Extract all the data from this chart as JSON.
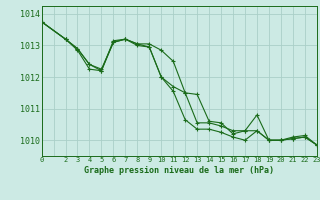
{
  "background_color": "#cceae4",
  "grid_color": "#aacfc8",
  "line_color": "#1a6b1a",
  "title": "Graphe pression niveau de la mer (hPa)",
  "xlim": [
    0,
    23
  ],
  "ylim": [
    1009.5,
    1014.25
  ],
  "yticks": [
    1010,
    1011,
    1012,
    1013,
    1014
  ],
  "xtick_labels": [
    "0",
    "",
    "2",
    "3",
    "4",
    "5",
    "6",
    "7",
    "8",
    "9",
    "10",
    "11",
    "12",
    "13",
    "14",
    "15",
    "16",
    "17",
    "18",
    "19",
    "20",
    "21",
    "22",
    "23"
  ],
  "series": [
    {
      "x": [
        0,
        2,
        3,
        4,
        5,
        6,
        7,
        8,
        9,
        10,
        11,
        12,
        13,
        14,
        15,
        16,
        17,
        18,
        19,
        20,
        21,
        22,
        23
      ],
      "y": [
        1013.75,
        1013.2,
        1012.9,
        1012.4,
        1012.2,
        1013.1,
        1013.2,
        1013.0,
        1012.95,
        1012.0,
        1011.55,
        1010.65,
        1010.35,
        1010.35,
        1010.25,
        1010.1,
        1010.0,
        1010.3,
        1010.0,
        1010.0,
        1010.1,
        1010.15,
        1009.85
      ]
    },
    {
      "x": [
        0,
        2,
        3,
        4,
        5,
        6,
        7,
        8,
        9,
        10,
        11,
        12,
        13,
        14,
        15,
        16,
        17,
        18,
        19,
        20,
        21,
        22,
        23
      ],
      "y": [
        1013.75,
        1013.2,
        1012.9,
        1012.4,
        1012.25,
        1013.1,
        1013.2,
        1013.05,
        1012.95,
        1012.0,
        1011.7,
        1011.5,
        1011.45,
        1010.6,
        1010.55,
        1010.2,
        1010.3,
        1010.8,
        1010.0,
        1010.0,
        1010.05,
        1010.1,
        1009.85
      ]
    },
    {
      "x": [
        0,
        2,
        3,
        4,
        5,
        6,
        7,
        8,
        9,
        10,
        11,
        12,
        13,
        14,
        15,
        16,
        17,
        18,
        19,
        20,
        21,
        22,
        23
      ],
      "y": [
        1013.75,
        1013.2,
        1012.85,
        1012.25,
        1012.2,
        1013.15,
        1013.2,
        1013.05,
        1013.05,
        1012.85,
        1012.5,
        1011.5,
        1010.55,
        1010.55,
        1010.45,
        1010.3,
        1010.3,
        1010.3,
        1010.0,
        1010.0,
        1010.05,
        1010.1,
        1009.85
      ]
    }
  ]
}
